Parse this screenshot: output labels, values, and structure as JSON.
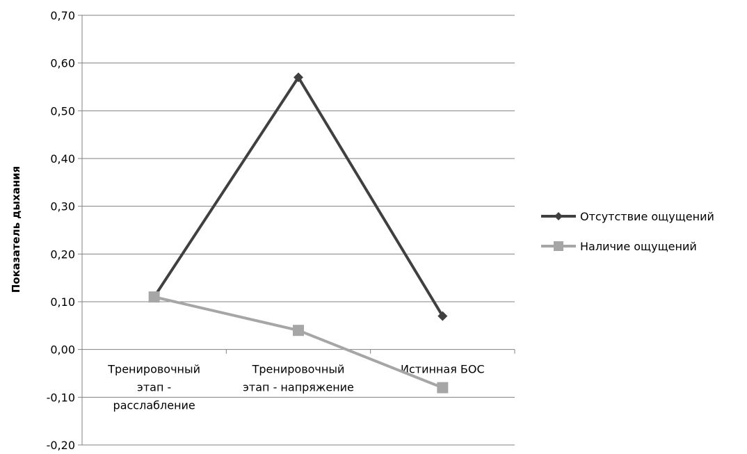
{
  "chart_data": {
    "type": "line",
    "title": "",
    "xlabel": "",
    "ylabel": "Показатель дыхания",
    "ylim": [
      -0.2,
      0.7
    ],
    "ytick_step": 0.1,
    "ytick_labels": [
      "-0,20",
      "-0,10",
      "0,00",
      "0,10",
      "0,20",
      "0,30",
      "0,40",
      "0,50",
      "0,60",
      "0,70"
    ],
    "categories": [
      [
        "Тренировочный",
        "этап -",
        "расслабление"
      ],
      [
        "Тренировочный",
        "этап - напряжение"
      ],
      [
        "Истинная БОС"
      ]
    ],
    "grid": "horizontal",
    "legend_position": "right",
    "series": [
      {
        "name": "Отсутствие ощущений",
        "values": [
          0.11,
          0.57,
          0.07
        ],
        "color": "#404040",
        "marker": "diamond"
      },
      {
        "name": "Наличие ощущений",
        "values": [
          0.11,
          0.04,
          -0.08
        ],
        "color": "#a6a6a6",
        "marker": "square"
      }
    ]
  }
}
